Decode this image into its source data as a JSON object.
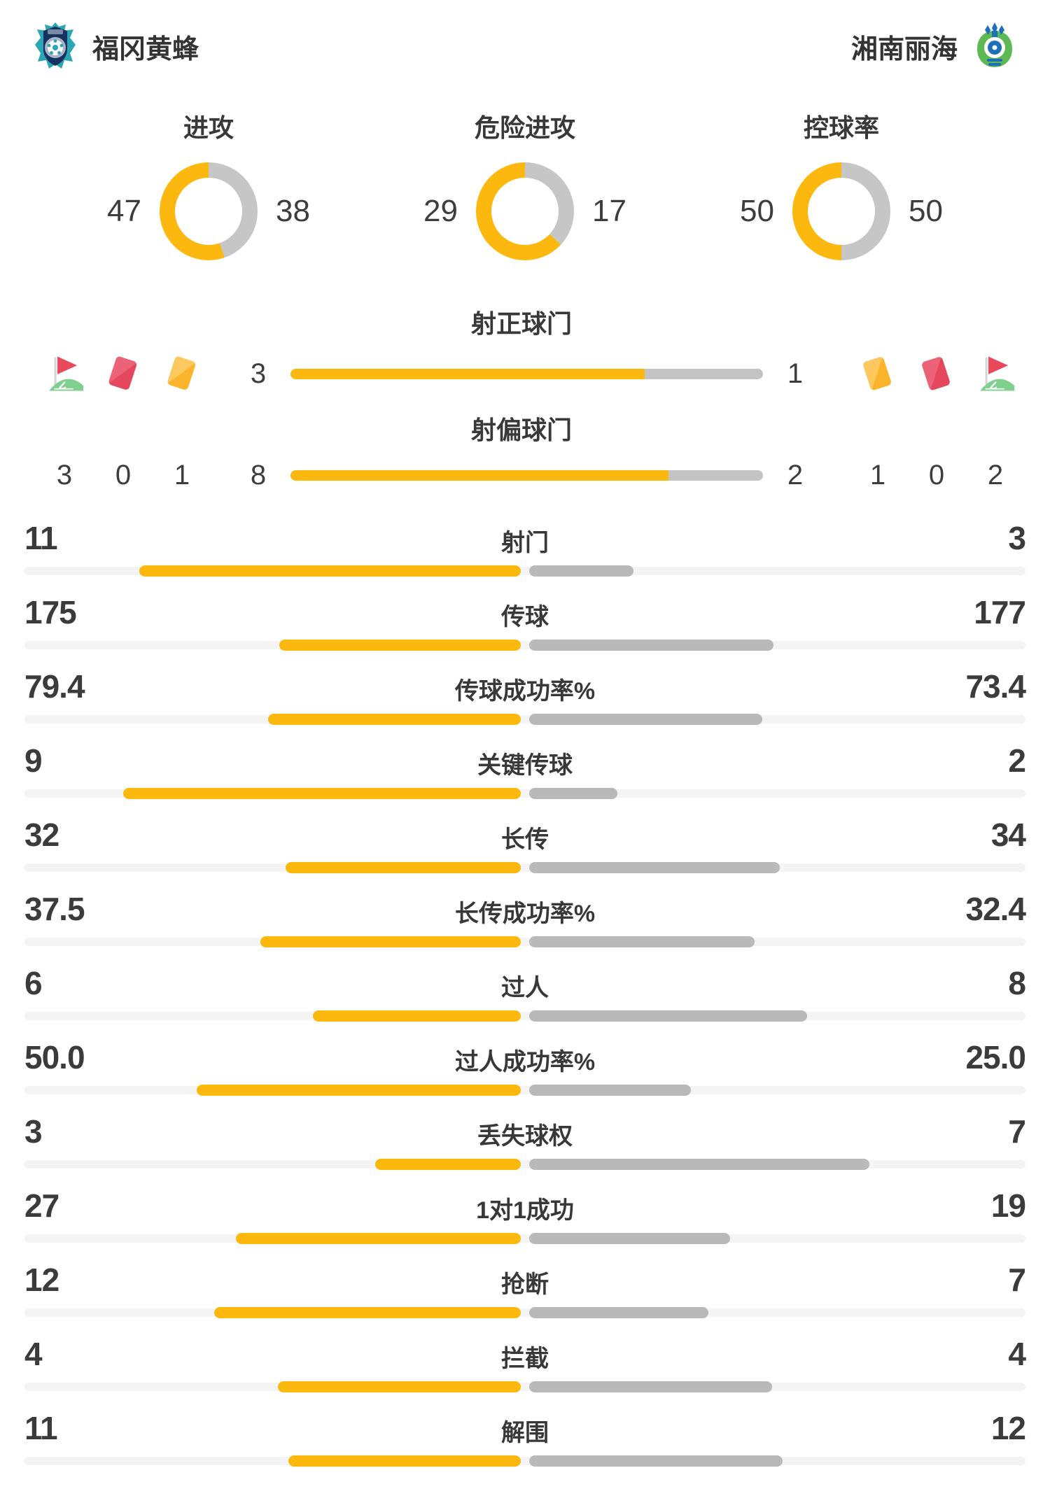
{
  "header": {
    "home_team": "福冈黄蜂",
    "away_team": "湘南丽海"
  },
  "colors": {
    "yellow": "#fcb80e",
    "bar_gray": "#b9b9b9",
    "donut_gray": "#c6c6c6",
    "track_gray": "#f4f4f4",
    "red_card": "#e5485e",
    "red_card_light": "#ec6377",
    "yellow_card": "#fbb42c",
    "yellow_card_light": "#fdc95f",
    "flag_red": "#e8495b",
    "flag_green": "#7ed08c"
  },
  "donuts": [
    {
      "label": "进攻",
      "home": 47,
      "away": 38
    },
    {
      "label": "危险进攻",
      "home": 29,
      "away": 17
    },
    {
      "label": "控球率",
      "home": 50,
      "away": 50
    }
  ],
  "discipline": {
    "home_icons": [
      "corner-flag-icon",
      "red-card-icon",
      "yellow-card-icon"
    ],
    "home_corner": "3",
    "home_red": "0",
    "home_yellow": "1",
    "away_icons": [
      "yellow-card-icon",
      "red-card-icon",
      "corner-flag-icon"
    ],
    "away_yellow": "1",
    "away_red": "0",
    "away_corner": "2"
  },
  "shot_bars": [
    {
      "label": "射正球门",
      "home": 3,
      "away": 1
    },
    {
      "label": "射偏球门",
      "home": 8,
      "away": 2
    }
  ],
  "stats": [
    {
      "label": "射门",
      "home": "11",
      "away": "3"
    },
    {
      "label": "传球",
      "home": "175",
      "away": "177"
    },
    {
      "label": "传球成功率%",
      "home": "79.4",
      "away": "73.4"
    },
    {
      "label": "关键传球",
      "home": "9",
      "away": "2"
    },
    {
      "label": "长传",
      "home": "32",
      "away": "34"
    },
    {
      "label": "长传成功率%",
      "home": "37.5",
      "away": "32.4"
    },
    {
      "label": "过人",
      "home": "6",
      "away": "8"
    },
    {
      "label": "过人成功率%",
      "home": "50.0",
      "away": "25.0"
    },
    {
      "label": "丢失球权",
      "home": "3",
      "away": "7"
    },
    {
      "label": "1对1成功",
      "home": "27",
      "away": "19"
    },
    {
      "label": "抢断",
      "home": "12",
      "away": "7"
    },
    {
      "label": "拦截",
      "home": "4",
      "away": "4"
    },
    {
      "label": "解围",
      "home": "11",
      "away": "12"
    }
  ]
}
